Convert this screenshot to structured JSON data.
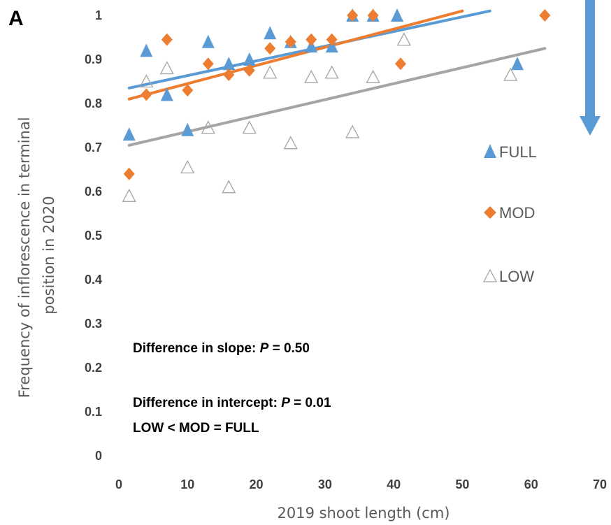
{
  "chart_data": {
    "type": "scatter",
    "panel_label": "A",
    "xlabel": "2019 shoot length (cm)",
    "ylabel_lines": [
      "Frequency of inflorescence in terminal",
      "position in 2020"
    ],
    "xlim": [
      0,
      70
    ],
    "ylim": [
      0,
      1
    ],
    "x_ticks": [
      "0",
      "10",
      "20",
      "30",
      "40",
      "50",
      "60",
      "70"
    ],
    "y_ticks": [
      "0",
      "0.1",
      "0.2",
      "0.3",
      "0.4",
      "0.5",
      "0.6",
      "0.7",
      "0.8",
      "0.9",
      "1"
    ],
    "grid": false,
    "legend_position": "right",
    "series": [
      {
        "name": "FULL",
        "marker": "filled-triangle",
        "color": "#5B9BD5",
        "points": [
          [
            1.5,
            0.73
          ],
          [
            4,
            0.92
          ],
          [
            7,
            0.82
          ],
          [
            10,
            0.74
          ],
          [
            13,
            0.94
          ],
          [
            16,
            0.89
          ],
          [
            19,
            0.9
          ],
          [
            22,
            0.96
          ],
          [
            25,
            0.94
          ],
          [
            28,
            0.93
          ],
          [
            31,
            0.93
          ],
          [
            34,
            1.0
          ],
          [
            37,
            1.0
          ],
          [
            40.5,
            1.0
          ],
          [
            58,
            0.89
          ]
        ],
        "trendline": [
          [
            1.5,
            0.835
          ],
          [
            54,
            1.01
          ]
        ]
      },
      {
        "name": "MOD",
        "marker": "filled-diamond",
        "color": "#ED7D31",
        "points": [
          [
            1.5,
            0.64
          ],
          [
            4,
            0.82
          ],
          [
            7,
            0.945
          ],
          [
            10,
            0.83
          ],
          [
            13,
            0.89
          ],
          [
            16,
            0.865
          ],
          [
            19,
            0.875
          ],
          [
            22,
            0.925
          ],
          [
            25,
            0.94
          ],
          [
            28,
            0.945
          ],
          [
            31,
            0.945
          ],
          [
            34,
            1.0
          ],
          [
            37,
            1.0
          ],
          [
            41,
            0.89
          ],
          [
            62,
            1.0
          ]
        ],
        "trendline": [
          [
            1.5,
            0.81
          ],
          [
            50,
            1.01
          ]
        ]
      },
      {
        "name": "LOW",
        "marker": "open-triangle",
        "color": "#A5A5A5",
        "points": [
          [
            1.5,
            0.59
          ],
          [
            4,
            0.85
          ],
          [
            7,
            0.88
          ],
          [
            10,
            0.655
          ],
          [
            13,
            0.745
          ],
          [
            16,
            0.61
          ],
          [
            19,
            0.745
          ],
          [
            22,
            0.87
          ],
          [
            25,
            0.71
          ],
          [
            28,
            0.86
          ],
          [
            31,
            0.87
          ],
          [
            34,
            0.735
          ],
          [
            37,
            0.86
          ],
          [
            41.5,
            0.945
          ],
          [
            57,
            0.865
          ]
        ],
        "trendline": [
          [
            1.5,
            0.705
          ],
          [
            62,
            0.925
          ]
        ]
      }
    ],
    "annotations": {
      "slope_prefix": "Difference in slope: ",
      "slope_p_symbol": "P",
      "slope_p_value": " = 0.50",
      "intercept_prefix": "Difference in intercept: ",
      "intercept_p_symbol": "P",
      "intercept_p_value": " = 0.01",
      "comparison": "LOW < MOD = FULL"
    },
    "arrow_color": "#5B9BD5"
  }
}
